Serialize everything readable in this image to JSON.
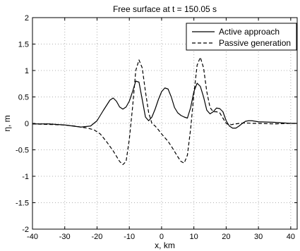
{
  "chart_data": {
    "type": "line",
    "title": "Free surface at t = 150.05 s",
    "xlabel": "x, km",
    "ylabel": "η, m",
    "xlim": [
      -40,
      42
    ],
    "ylim": [
      -2,
      2
    ],
    "xticks": [
      -40,
      -30,
      -20,
      -10,
      0,
      10,
      20,
      30,
      40
    ],
    "xtick_labels": [
      "-40",
      "-30",
      "-20",
      "-10",
      "0",
      "10",
      "20",
      "30",
      "40"
    ],
    "yticks": [
      -2,
      -1.5,
      -1,
      -0.5,
      0,
      0.5,
      1,
      1.5,
      2
    ],
    "ytick_labels": [
      "-2",
      "-1.5",
      "-1",
      "-0.5",
      "0",
      "0.5",
      "1",
      "1.5",
      "2"
    ],
    "grid": true,
    "grid_style": "dotted",
    "legend_position": "top-right",
    "series": [
      {
        "name": "Active approach",
        "style": "solid",
        "color": "#000000",
        "x": [
          -40,
          -35,
          -30,
          -25,
          -22,
          -20,
          -18,
          -16,
          -15,
          -14,
          -13,
          -12,
          -11,
          -10,
          -9,
          -8,
          -7,
          -6,
          -5,
          -4,
          -3,
          -2,
          -1,
          0,
          1,
          2,
          3,
          4,
          5,
          6,
          7,
          8,
          9,
          10,
          11,
          12,
          13,
          14,
          15,
          16,
          17,
          18,
          19,
          20,
          21,
          22,
          23,
          24,
          25,
          26,
          27,
          28,
          30,
          35,
          40,
          42
        ],
        "y": [
          -0.01,
          -0.01,
          -0.03,
          -0.07,
          -0.05,
          0.05,
          0.25,
          0.44,
          0.48,
          0.42,
          0.31,
          0.27,
          0.31,
          0.42,
          0.6,
          0.8,
          0.78,
          0.45,
          0.12,
          0.05,
          0.12,
          0.27,
          0.45,
          0.6,
          0.67,
          0.65,
          0.5,
          0.3,
          0.2,
          0.15,
          0.12,
          0.1,
          0.3,
          0.6,
          0.76,
          0.7,
          0.5,
          0.25,
          0.18,
          0.22,
          0.29,
          0.28,
          0.22,
          0.05,
          -0.05,
          -0.09,
          -0.09,
          -0.05,
          0.0,
          0.04,
          0.05,
          0.05,
          0.03,
          0.02,
          0.0,
          0.0
        ]
      },
      {
        "name": "Passive generation",
        "style": "dashed",
        "color": "#000000",
        "x": [
          -40,
          -35,
          -30,
          -27,
          -25,
          -23,
          -21,
          -19,
          -17,
          -15,
          -13,
          -12,
          -11,
          -10,
          -9,
          -8,
          -7,
          -6,
          -5,
          -4,
          -3,
          -2,
          -1,
          0,
          1,
          2,
          3,
          4,
          5,
          6,
          7,
          8,
          9,
          10,
          11,
          12,
          13,
          14,
          15,
          16,
          17,
          18,
          19,
          20,
          21,
          22,
          24,
          26,
          28,
          30,
          35,
          40,
          42
        ],
        "y": [
          -0.01,
          -0.02,
          -0.03,
          -0.05,
          -0.07,
          -0.09,
          -0.12,
          -0.2,
          -0.35,
          -0.52,
          -0.72,
          -0.78,
          -0.72,
          -0.3,
          0.3,
          1.0,
          1.2,
          1.05,
          0.6,
          0.2,
          0.0,
          -0.05,
          -0.12,
          -0.2,
          -0.27,
          -0.34,
          -0.43,
          -0.53,
          -0.63,
          -0.72,
          -0.75,
          -0.6,
          -0.1,
          0.55,
          1.1,
          1.25,
          1.05,
          0.6,
          0.3,
          0.22,
          0.22,
          0.2,
          0.1,
          0.0,
          -0.03,
          -0.02,
          0.0,
          0.01,
          0.0,
          0.0,
          -0.01,
          0.0,
          0.0
        ]
      }
    ]
  }
}
